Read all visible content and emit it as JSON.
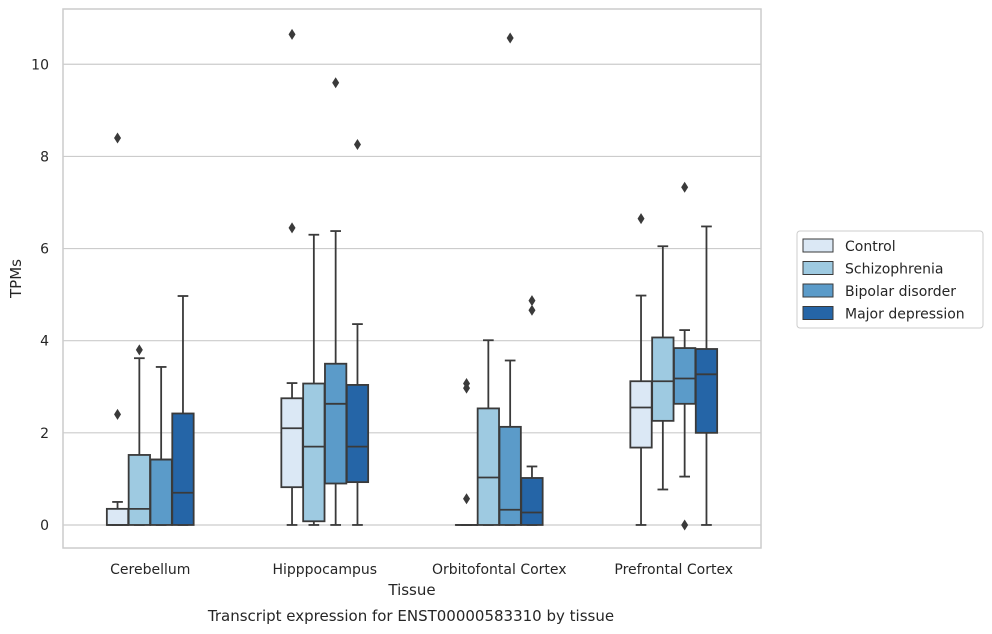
{
  "caption": "Transcript expression for ENST00000583310 by tissue",
  "chart_data": {
    "type": "box",
    "xlabel": "Tissue",
    "ylabel": "TPMs",
    "ylim": [
      -0.5,
      11.2
    ],
    "yticks": [
      0,
      2,
      4,
      6,
      8,
      10
    ],
    "grid": "horizontal",
    "legend_position": "right",
    "categories": [
      "Cerebellum",
      "Hipppocampus",
      "Orbitofontal Cortex",
      "Prefrontal Cortex"
    ],
    "series": [
      {
        "name": "Control",
        "color": "#dbe8f5",
        "boxes": [
          {
            "whislo": 0,
            "q1": 0,
            "med": 0,
            "q3": 0.35,
            "whishi": 0.5,
            "fliers": [
              2.4,
              8.4
            ]
          },
          {
            "whislo": 0,
            "q1": 0.82,
            "med": 2.1,
            "q3": 2.75,
            "whishi": 3.08,
            "fliers": [
              6.45,
              10.65
            ]
          },
          {
            "whislo": 0,
            "q1": 0,
            "med": 0,
            "q3": 0,
            "whishi": 0,
            "fliers": [
              0.57,
              2.97,
              3.07
            ]
          },
          {
            "whislo": 0,
            "q1": 1.68,
            "med": 2.55,
            "q3": 3.12,
            "whishi": 4.98,
            "fliers": [
              6.65
            ]
          }
        ]
      },
      {
        "name": "Schizophrenia",
        "color": "#9ecae1",
        "boxes": [
          {
            "whislo": 0,
            "q1": 0,
            "med": 0.35,
            "q3": 1.52,
            "whishi": 3.62,
            "fliers": [
              3.8
            ]
          },
          {
            "whislo": 0,
            "q1": 0.08,
            "med": 1.7,
            "q3": 3.07,
            "whishi": 6.3,
            "fliers": []
          },
          {
            "whislo": 0,
            "q1": 0,
            "med": 1.03,
            "q3": 2.53,
            "whishi": 4.01,
            "fliers": []
          },
          {
            "whislo": 0.77,
            "q1": 2.26,
            "med": 3.12,
            "q3": 4.07,
            "whishi": 6.05,
            "fliers": []
          }
        ]
      },
      {
        "name": "Bipolar disorder",
        "color": "#5b9bc9",
        "boxes": [
          {
            "whislo": 0,
            "q1": 0,
            "med": 1.42,
            "q3": 1.42,
            "whishi": 3.43,
            "fliers": []
          },
          {
            "whislo": 0,
            "q1": 0.9,
            "med": 2.63,
            "q3": 3.5,
            "whishi": 6.38,
            "fliers": [
              9.6
            ]
          },
          {
            "whislo": 0,
            "q1": 0,
            "med": 0.33,
            "q3": 2.13,
            "whishi": 3.57,
            "fliers": [
              10.57
            ]
          },
          {
            "whislo": 1.05,
            "q1": 2.63,
            "med": 3.18,
            "q3": 3.84,
            "whishi": 4.23,
            "fliers": [
              0,
              7.33
            ]
          }
        ]
      },
      {
        "name": "Major depression",
        "color": "#2565a7",
        "boxes": [
          {
            "whislo": 0,
            "q1": 0,
            "med": 0.7,
            "q3": 2.42,
            "whishi": 4.97,
            "fliers": []
          },
          {
            "whislo": 0,
            "q1": 0.93,
            "med": 1.7,
            "q3": 3.04,
            "whishi": 4.36,
            "fliers": [
              8.26
            ]
          },
          {
            "whislo": 0,
            "q1": 0,
            "med": 0.27,
            "q3": 1.02,
            "whishi": 1.27,
            "fliers": [
              4.66,
              4.87
            ]
          },
          {
            "whislo": 0,
            "q1": 2.0,
            "med": 3.27,
            "q3": 3.82,
            "whishi": 6.48,
            "fliers": []
          }
        ]
      }
    ]
  }
}
